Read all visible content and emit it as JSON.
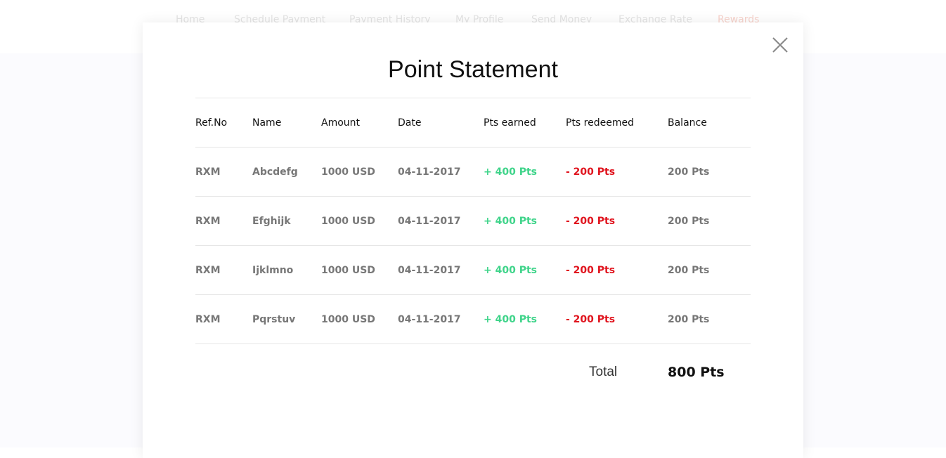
{
  "nav": [
    "Home",
    "Schedule Payment",
    "Payment History",
    "My Profile",
    "Send Money",
    "Exchange Rate",
    "Rewards"
  ],
  "modal": {
    "title": "Point Statement",
    "table": {
      "headers": [
        "Ref.No",
        "Name",
        "Amount",
        "Date",
        "Pts earned",
        "Pts redeemed",
        "Balance"
      ],
      "rows": [
        [
          "RXM",
          "Abcdefg",
          "1000 USD",
          "04-11-2017",
          "+ 400 Pts",
          "- 200 Pts",
          "200 Pts"
        ],
        [
          "RXM",
          "Efghijk",
          "1000 USD",
          "04-11-2017",
          "+ 400 Pts",
          "- 200 Pts",
          "200 Pts"
        ],
        [
          "RXM",
          "Ijklmno",
          "1000 USD",
          "04-11-2017",
          "+ 400 Pts",
          "- 200 Pts",
          "200 Pts"
        ],
        [
          "RXM",
          "Pqrstuv",
          "1000 USD",
          "04-11-2017",
          "+ 400 Pts",
          "- 200 Pts",
          "200 Pts"
        ]
      ]
    },
    "total": {
      "label": "Total",
      "value": "800 Pts"
    }
  }
}
